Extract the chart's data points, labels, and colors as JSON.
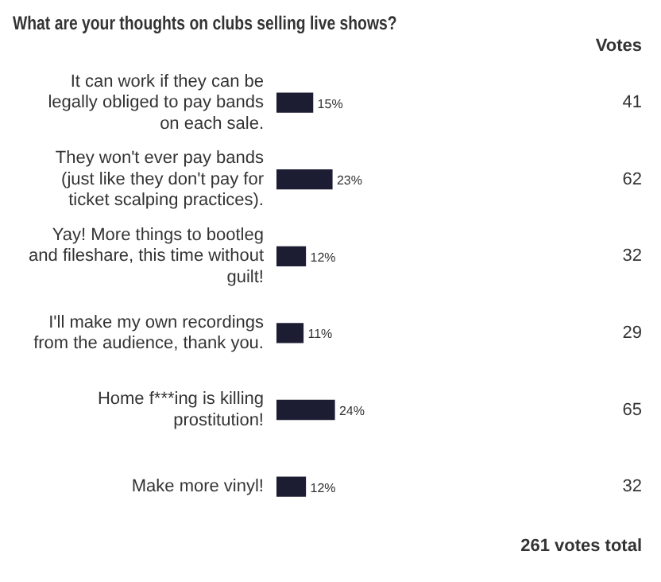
{
  "chart_data": {
    "type": "bar",
    "orientation": "horizontal",
    "title": "What are your thoughts on clubs selling live shows?",
    "categories": [
      "It can work if they can be legally obliged to pay bands on each sale.",
      "They won't ever pay bands (just like they don't pay for ticket scalping practices).",
      "Yay! More things to bootleg and fileshare, this time without guilt!",
      "I'll make my own recordings from the audience, thank you.",
      "Home f***ing is killing prostitution!",
      "Make more vinyl!"
    ],
    "values": [
      15,
      23,
      12,
      11,
      24,
      12
    ],
    "value_labels": [
      "15%",
      "23%",
      "12%",
      "11%",
      "24%",
      "12%"
    ],
    "color": "#1c1c33",
    "tick_labels": "y",
    "grid": false,
    "legend": false,
    "annotations": [
      "Votes",
      "41",
      "62",
      "32",
      "29",
      "65",
      "32",
      "261 votes total"
    ]
  }
}
